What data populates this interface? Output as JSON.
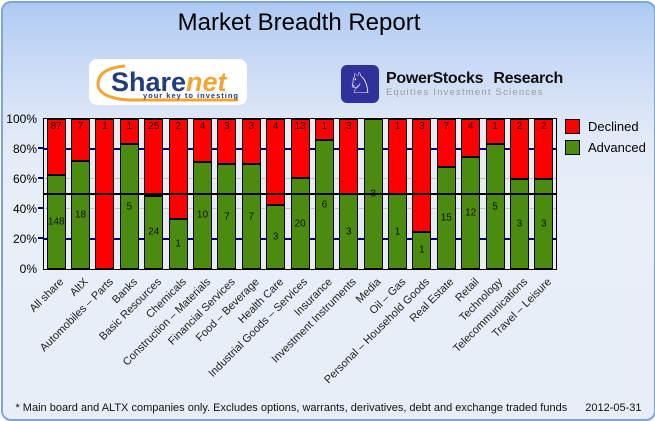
{
  "page": {
    "title": "Market Breadth Report",
    "footer_note": "* Main board and ALTX companies only. Excludes options, warrants, derivatives, debt and exchange traded funds",
    "footer_date": "2012-05-31"
  },
  "logos": {
    "sharenet": {
      "part1": "Share",
      "part2": "net",
      "tagline": "your key to investing",
      "navy": "#213D7C",
      "orange": "#F2A537"
    },
    "powerstocks": {
      "icon": "chess-knight-icon",
      "knight_glyph": "♘",
      "title": "PowerStocks Research",
      "tagline": "Equities Investment Sciences",
      "badge_color": "#31319C"
    }
  },
  "colors": {
    "page_border": "#7CA5DE",
    "plot_background": "#E7ECF4",
    "grid_major": "#00008B",
    "grid_minor": "#C3C3C3",
    "reference_line": "#000000"
  },
  "chart_data": {
    "type": "bar",
    "stacked": true,
    "mode": "percent",
    "ylim": [
      0,
      100
    ],
    "yticks": [
      "0%",
      "20%",
      "40%",
      "60%",
      "80%",
      "100%"
    ],
    "ytick_values": [
      0,
      20,
      40,
      60,
      80,
      100
    ],
    "grid": "horizontal",
    "reference_line_pct": 50,
    "legend_position": "top-right",
    "legend": [
      {
        "label": "Declined",
        "color": "#FF0000"
      },
      {
        "label": "Advanced",
        "color": "#4A8B10"
      }
    ],
    "categories": [
      "All share",
      "AltX",
      "Automobiles – Parts",
      "Banks",
      "Basic Resources",
      "Chemicals",
      "Construction – Materials",
      "Financial Services",
      "Food – Beverage",
      "Health Care",
      "Industrial Goods – Services",
      "Insurance",
      "Investment Instruments",
      "Media",
      "Oil – Gas",
      "Personal – Household Goods",
      "Real Estate",
      "Retail",
      "Technology",
      "Telecommunications",
      "Travel – Leisure"
    ],
    "series": [
      {
        "name": "Declined",
        "color": "#FF0000",
        "values": [
          87,
          7,
          1,
          1,
          25,
          2,
          4,
          3,
          3,
          4,
          13,
          1,
          3,
          0,
          1,
          3,
          7,
          4,
          1,
          2,
          2
        ]
      },
      {
        "name": "Advanced",
        "color": "#4A8B10",
        "values": [
          148,
          18,
          0,
          5,
          24,
          1,
          10,
          7,
          7,
          3,
          20,
          6,
          3,
          3,
          1,
          1,
          15,
          12,
          5,
          3,
          3
        ]
      }
    ]
  }
}
